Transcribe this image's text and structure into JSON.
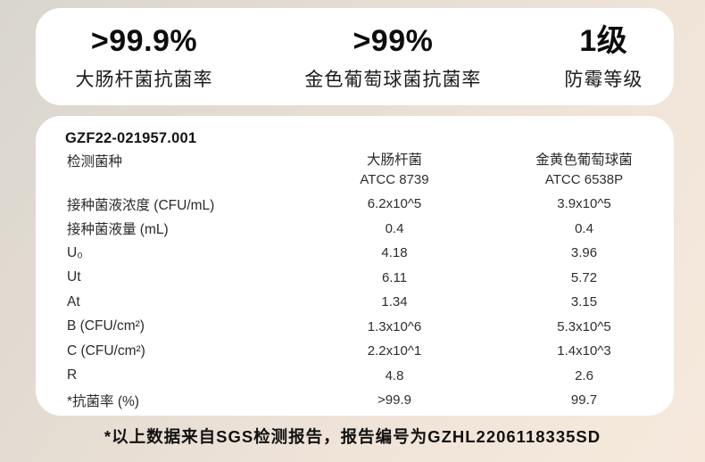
{
  "stats": [
    {
      "value": ">99.9%",
      "label": "大肠杆菌抗菌率"
    },
    {
      "value": ">99%",
      "label": "金色葡萄球菌抗菌率"
    },
    {
      "value": "1级",
      "label": "防霉等级"
    }
  ],
  "report": {
    "id": "GZF22-021957.001",
    "species_label": "检测菌种",
    "columns": [
      {
        "name": "大肠杆菌",
        "code": "ATCC 8739"
      },
      {
        "name": "金黄色葡萄球菌",
        "code": "ATCC 6538P"
      }
    ],
    "rows": [
      {
        "label": "接种菌液浓度 (CFU/mL)",
        "v1": "6.2x10^5",
        "v2": "3.9x10^5"
      },
      {
        "label": "接种菌液量 (mL)",
        "v1": "0.4",
        "v2": "0.4"
      },
      {
        "label": "U₀",
        "v1": "4.18",
        "v2": "3.96"
      },
      {
        "label": "Ut",
        "v1": "6.11",
        "v2": "5.72"
      },
      {
        "label": "At",
        "v1": "1.34",
        "v2": "3.15"
      },
      {
        "label": "B (CFU/cm²)",
        "v1": "1.3x10^6",
        "v2": "5.3x10^5"
      },
      {
        "label": "C (CFU/cm²)",
        "v1": "2.2x10^1",
        "v2": "1.4x10^3"
      },
      {
        "label": "R",
        "v1": "4.8",
        "v2": "2.6"
      },
      {
        "label": "*抗菌率 (%)",
        "v1": ">99.9",
        "v2": "99.7"
      }
    ]
  },
  "footer": {
    "note": "*以上数据来自SGS检测报告，报告编号为GZHL2206118335SD"
  },
  "colors": {
    "bg_top_left": "#d9d6ce",
    "bg_bottom_right": "#f6e9dc",
    "card": "#ffffff",
    "text": "#141414"
  }
}
